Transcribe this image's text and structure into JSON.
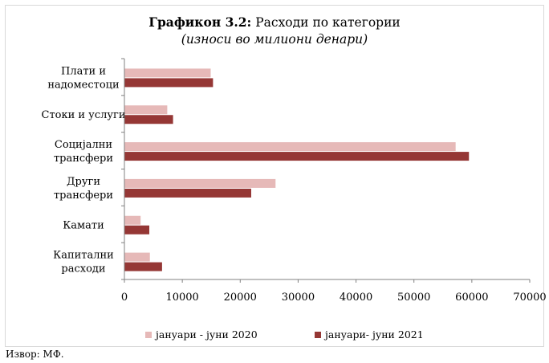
{
  "chart_data": {
    "type": "bar",
    "orientation": "horizontal",
    "title_bold": "Графикон 3.2:",
    "title_rest": "Расходи по категории",
    "subtitle": "(износи во милиони денари)",
    "categories": [
      [
        "Плати и",
        "надоместоци"
      ],
      [
        "Стоки и услуги"
      ],
      [
        "Социјални",
        "трансфери"
      ],
      [
        "Други",
        "трансфери"
      ],
      [
        "Камати"
      ],
      [
        "Капитални",
        "расходи"
      ]
    ],
    "series": [
      {
        "name": "јануари - јуни 2020",
        "color": "#e6b9b8",
        "values": [
          14900,
          7400,
          57200,
          26100,
          2800,
          4400
        ]
      },
      {
        "name": "јануари- јуни 2021",
        "color": "#953735",
        "values": [
          15300,
          8400,
          59500,
          21900,
          4300,
          6500
        ]
      }
    ],
    "xlim": [
      0,
      70000
    ],
    "xticks": [
      "0",
      "10000",
      "20000",
      "30000",
      "40000",
      "50000",
      "60000",
      "70000"
    ],
    "grid": false,
    "legend_position": "bottom"
  },
  "source": "Извор: МФ."
}
